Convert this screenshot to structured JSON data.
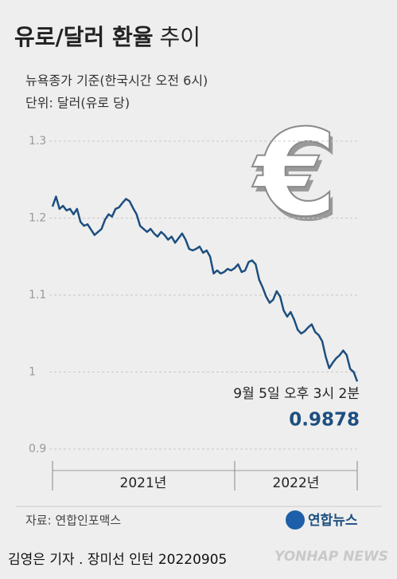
{
  "chart_data": {
    "type": "line",
    "title": "유로/달러 환율",
    "title_suffix": "추이",
    "subtitle": "뉴욕종가 기준(한국시간 오전 6시)",
    "unit_note": "단위: 달러(유로 당)",
    "annotation": "9월 5일 오후 3시 2분",
    "year_labels": [
      "2021년",
      "2022년"
    ],
    "categories": [
      null,
      null,
      null,
      null,
      null,
      null,
      null,
      null,
      null,
      null,
      null,
      null,
      null,
      null,
      null,
      null,
      null,
      null,
      null,
      null,
      null,
      null,
      null,
      null,
      null,
      null,
      null,
      null,
      null,
      null,
      null,
      null,
      null,
      null,
      null,
      null,
      null,
      null,
      null,
      null,
      null,
      null,
      null,
      null,
      null,
      null,
      null,
      null,
      null,
      null,
      null,
      null,
      null,
      null,
      null,
      null,
      null,
      null,
      null,
      null,
      null,
      null,
      null,
      null,
      null,
      null,
      null,
      null,
      null,
      null,
      null,
      null,
      null,
      null,
      null,
      null,
      null,
      null,
      null,
      null,
      null,
      null,
      null,
      null,
      null,
      null,
      null,
      null
    ],
    "values": [
      1.215,
      1.228,
      1.212,
      1.216,
      1.21,
      1.212,
      1.205,
      1.212,
      1.195,
      1.19,
      1.192,
      1.185,
      1.178,
      1.182,
      1.186,
      1.198,
      1.205,
      1.202,
      1.212,
      1.214,
      1.22,
      1.225,
      1.222,
      1.213,
      1.205,
      1.19,
      1.186,
      1.182,
      1.186,
      1.18,
      1.176,
      1.182,
      1.178,
      1.172,
      1.176,
      1.168,
      1.174,
      1.18,
      1.172,
      1.16,
      1.158,
      1.16,
      1.163,
      1.155,
      1.158,
      1.15,
      1.128,
      1.132,
      1.128,
      1.13,
      1.134,
      1.132,
      1.135,
      1.14,
      1.13,
      1.132,
      1.143,
      1.145,
      1.14,
      1.12,
      1.11,
      1.098,
      1.09,
      1.094,
      1.105,
      1.098,
      1.08,
      1.072,
      1.078,
      1.068,
      1.055,
      1.05,
      1.053,
      1.058,
      1.062,
      1.052,
      1.048,
      1.04,
      1.02,
      1.005,
      1.012,
      1.018,
      1.022,
      1.028,
      1.022,
      1.004,
      1.0,
      0.9878
    ],
    "color": "#1d4f7f",
    "ylim": [
      0.9,
      1.3
    ],
    "yticks": [
      0.9,
      1.0,
      1.1,
      1.2,
      1.3
    ],
    "grid": true,
    "source": "자료: 연합인포맥스",
    "logo": "연합뉴스",
    "credit": "김영은 기자 . 장미선 인턴 20220905",
    "watermark": "YONHAP NEWS"
  }
}
